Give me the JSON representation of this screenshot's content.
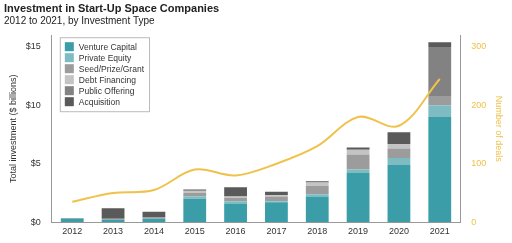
{
  "chart_data": {
    "type": "bar",
    "title": "Investment in Start-Up Space Companies",
    "subtitle": "2012 to 2021, by Investment Type",
    "y_label": "Total investment ($ billions)",
    "y2_label": "Number of deals",
    "categories": [
      "2012",
      "2013",
      "2014",
      "2015",
      "2016",
      "2017",
      "2018",
      "2019",
      "2020",
      "2021"
    ],
    "stacked": true,
    "grid": false,
    "legend": "upper left",
    "ylim": [
      0,
      16
    ],
    "yticks": [
      {
        "value": 0,
        "label": "$0"
      },
      {
        "value": 5,
        "label": "$5"
      },
      {
        "value": 10,
        "label": "$10"
      },
      {
        "value": 15,
        "label": "$15"
      }
    ],
    "y2lim": [
      0,
      320
    ],
    "y2ticks": [
      0,
      100,
      200,
      300
    ],
    "series": [
      {
        "name": "Venture Capital",
        "color": "#3a9da8",
        "values": [
          0.3,
          0.2,
          0.3,
          2.0,
          1.6,
          1.7,
          2.2,
          4.2,
          4.9,
          9.0
        ]
      },
      {
        "name": "Private Equity",
        "color": "#7fbcc2",
        "values": [
          0,
          0,
          0,
          0.2,
          0.2,
          0.1,
          0.2,
          0.3,
          0.6,
          1.0
        ]
      },
      {
        "name": "Seed/Prize/Grant",
        "color": "#9c9c9c",
        "values": [
          0.05,
          0.1,
          0.1,
          0.3,
          0.3,
          0.4,
          0.7,
          1.3,
          0.8,
          0.8
        ]
      },
      {
        "name": "Debt Financing",
        "color": "#c4c4c4",
        "values": [
          0,
          0,
          0,
          0.2,
          0.1,
          0.1,
          0.3,
          0.4,
          0.4,
          0
        ]
      },
      {
        "name": "Public Offering",
        "color": "#828282",
        "values": [
          0,
          0,
          0,
          0,
          0,
          0,
          0,
          0,
          0,
          4.2
        ]
      },
      {
        "name": "Acquisition",
        "color": "#5a5a5a",
        "values": [
          0,
          0.9,
          0.5,
          0.1,
          0.8,
          0.3,
          0.1,
          0.2,
          1.0,
          0.4
        ]
      },
      {
        "name": "Number of deals",
        "type": "line",
        "axis": "y2",
        "color": "#f0c14b",
        "values": [
          35,
          50,
          55,
          90,
          80,
          100,
          130,
          180,
          165,
          245
        ]
      }
    ]
  }
}
